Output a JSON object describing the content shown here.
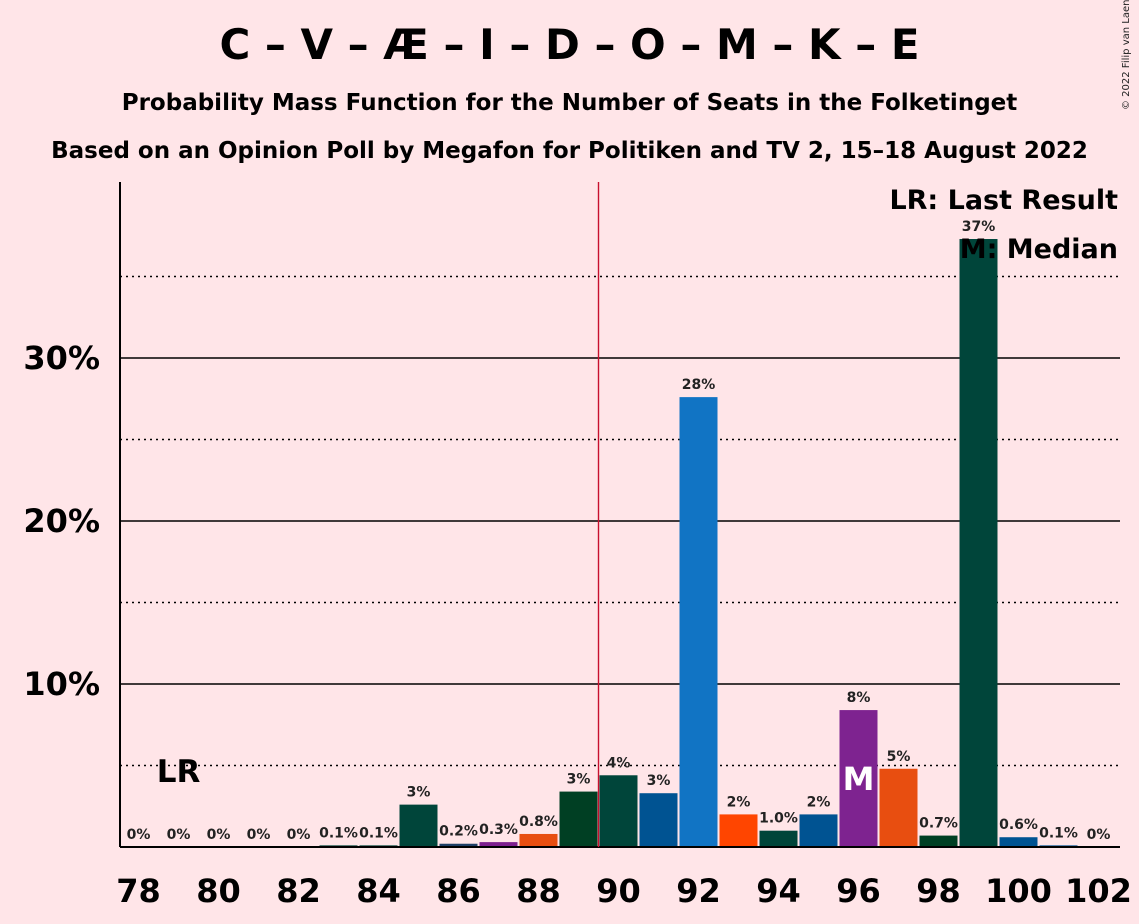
{
  "title": "C – V – Æ – I – D – O – M – K – E",
  "subtitle": "Probability Mass Function for the Number of Seats in the Folketinget",
  "subtitle2": "Based on an Opinion Poll by Megafon for Politiken and TV 2, 15–18 August 2022",
  "copyright": "© 2022 Filip van Laenen",
  "legend": {
    "last_result": "LR: Last Result",
    "median": "M: Median"
  },
  "markers": {
    "last_result_label": "LR",
    "last_result_seat": 79,
    "median_label": "M",
    "median_seat": 96,
    "majority_line_seat": 89.5
  },
  "chart_data": {
    "type": "bar",
    "x": [
      78,
      79,
      80,
      81,
      82,
      83,
      84,
      85,
      86,
      87,
      88,
      89,
      90,
      91,
      92,
      93,
      94,
      95,
      96,
      97,
      98,
      99,
      100,
      101,
      102
    ],
    "values": [
      0,
      0,
      0,
      0,
      0,
      0.1,
      0.1,
      2.6,
      0.2,
      0.3,
      0.8,
      3.4,
      4.4,
      3.3,
      27.6,
      2.0,
      1.0,
      2.0,
      8.4,
      4.8,
      0.7,
      37.3,
      0.6,
      0.1,
      0
    ],
    "labels": [
      "0%",
      "0%",
      "0%",
      "0%",
      "0%",
      "0.1%",
      "0.1%",
      "3%",
      "0.2%",
      "0.3%",
      "0.8%",
      "3%",
      "4%",
      "3%",
      "28%",
      "2%",
      "1.0%",
      "2%",
      "8%",
      "5%",
      "0.7%",
      "37%",
      "0.6%",
      "0.1%",
      "0%"
    ],
    "colors": [
      "#00453A",
      "#00453A",
      "#00453A",
      "#00453A",
      "#00453A",
      "#00453A",
      "#00453A",
      "#00453A",
      "#1E3F66",
      "#7E1F8E",
      "#E84E10",
      "#003F23",
      "#00453A",
      "#005392",
      "#1174C4",
      "#FF4500",
      "#00453A",
      "#005392",
      "#7E2390",
      "#E84E10",
      "#003F23",
      "#00453A",
      "#005392",
      "#005392",
      "#005392"
    ],
    "x_ticks": [
      78,
      80,
      82,
      84,
      86,
      88,
      90,
      92,
      94,
      96,
      98,
      100,
      102
    ],
    "y_ticks": [
      "10%",
      "20%",
      "30%"
    ],
    "y_tick_values": [
      10,
      20,
      30
    ],
    "y_dotted_values": [
      5,
      15,
      25,
      35
    ],
    "ylim": [
      0,
      40
    ],
    "xlabel": "",
    "ylabel": ""
  }
}
